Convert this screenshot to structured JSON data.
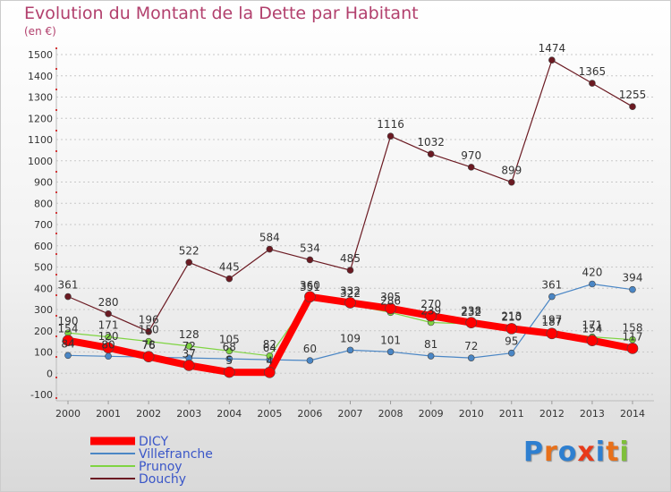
{
  "header": {
    "title": "Evolution du Montant de la Dette par Habitant",
    "unit": "(en €)"
  },
  "chart_data": {
    "type": "line",
    "title": "Evolution du Montant de la Dette par Habitant",
    "subtitle": "(en €)",
    "xlabel": "",
    "ylabel": "",
    "x": [
      "2000",
      "2001",
      "2002",
      "2003",
      "2004",
      "2005",
      "2006",
      "2007",
      "2008",
      "2009",
      "2010",
      "2011",
      "2012",
      "2013",
      "2014"
    ],
    "yticks": [
      -100,
      0,
      100,
      200,
      300,
      400,
      500,
      600,
      700,
      800,
      900,
      1000,
      1100,
      1200,
      1300,
      1400,
      1500
    ],
    "ylim": [
      -100,
      1500
    ],
    "grid": "dotted-horizontal",
    "legend_position": "bottom-left",
    "series": [
      {
        "name": "DICY",
        "color": "#ff0000",
        "values": [
          154,
          120,
          78,
          37,
          5,
          4,
          360,
          332,
          305,
          270,
          238,
          210,
          187,
          154,
          117
        ]
      },
      {
        "name": "Villefranche",
        "color": "#4a86c5",
        "values": [
          84,
          80,
          76,
          72,
          68,
          64,
          60,
          109,
          101,
          81,
          72,
          95,
          361,
          420,
          394
        ]
      },
      {
        "name": "Prunoy",
        "color": "#7fd442",
        "values": [
          190,
          171,
          150,
          128,
          105,
          82,
          351,
          322,
          286,
          239,
          232,
          213,
          197,
          171,
          158
        ]
      },
      {
        "name": "Douchy",
        "color": "#6b1a22",
        "values": [
          361,
          280,
          196,
          522,
          445,
          584,
          534,
          485,
          1116,
          1032,
          970,
          899,
          1474,
          1365,
          1255
        ]
      }
    ]
  },
  "branding": {
    "logo_letters": [
      "P",
      "r",
      "o",
      "x",
      "i",
      "t",
      "i"
    ],
    "logo_colors": [
      "#2e7fd0",
      "#e8701a",
      "#2e7fd0",
      "#e83a1a",
      "#2e7fd0",
      "#e8701a",
      "#7fbf3a"
    ]
  }
}
